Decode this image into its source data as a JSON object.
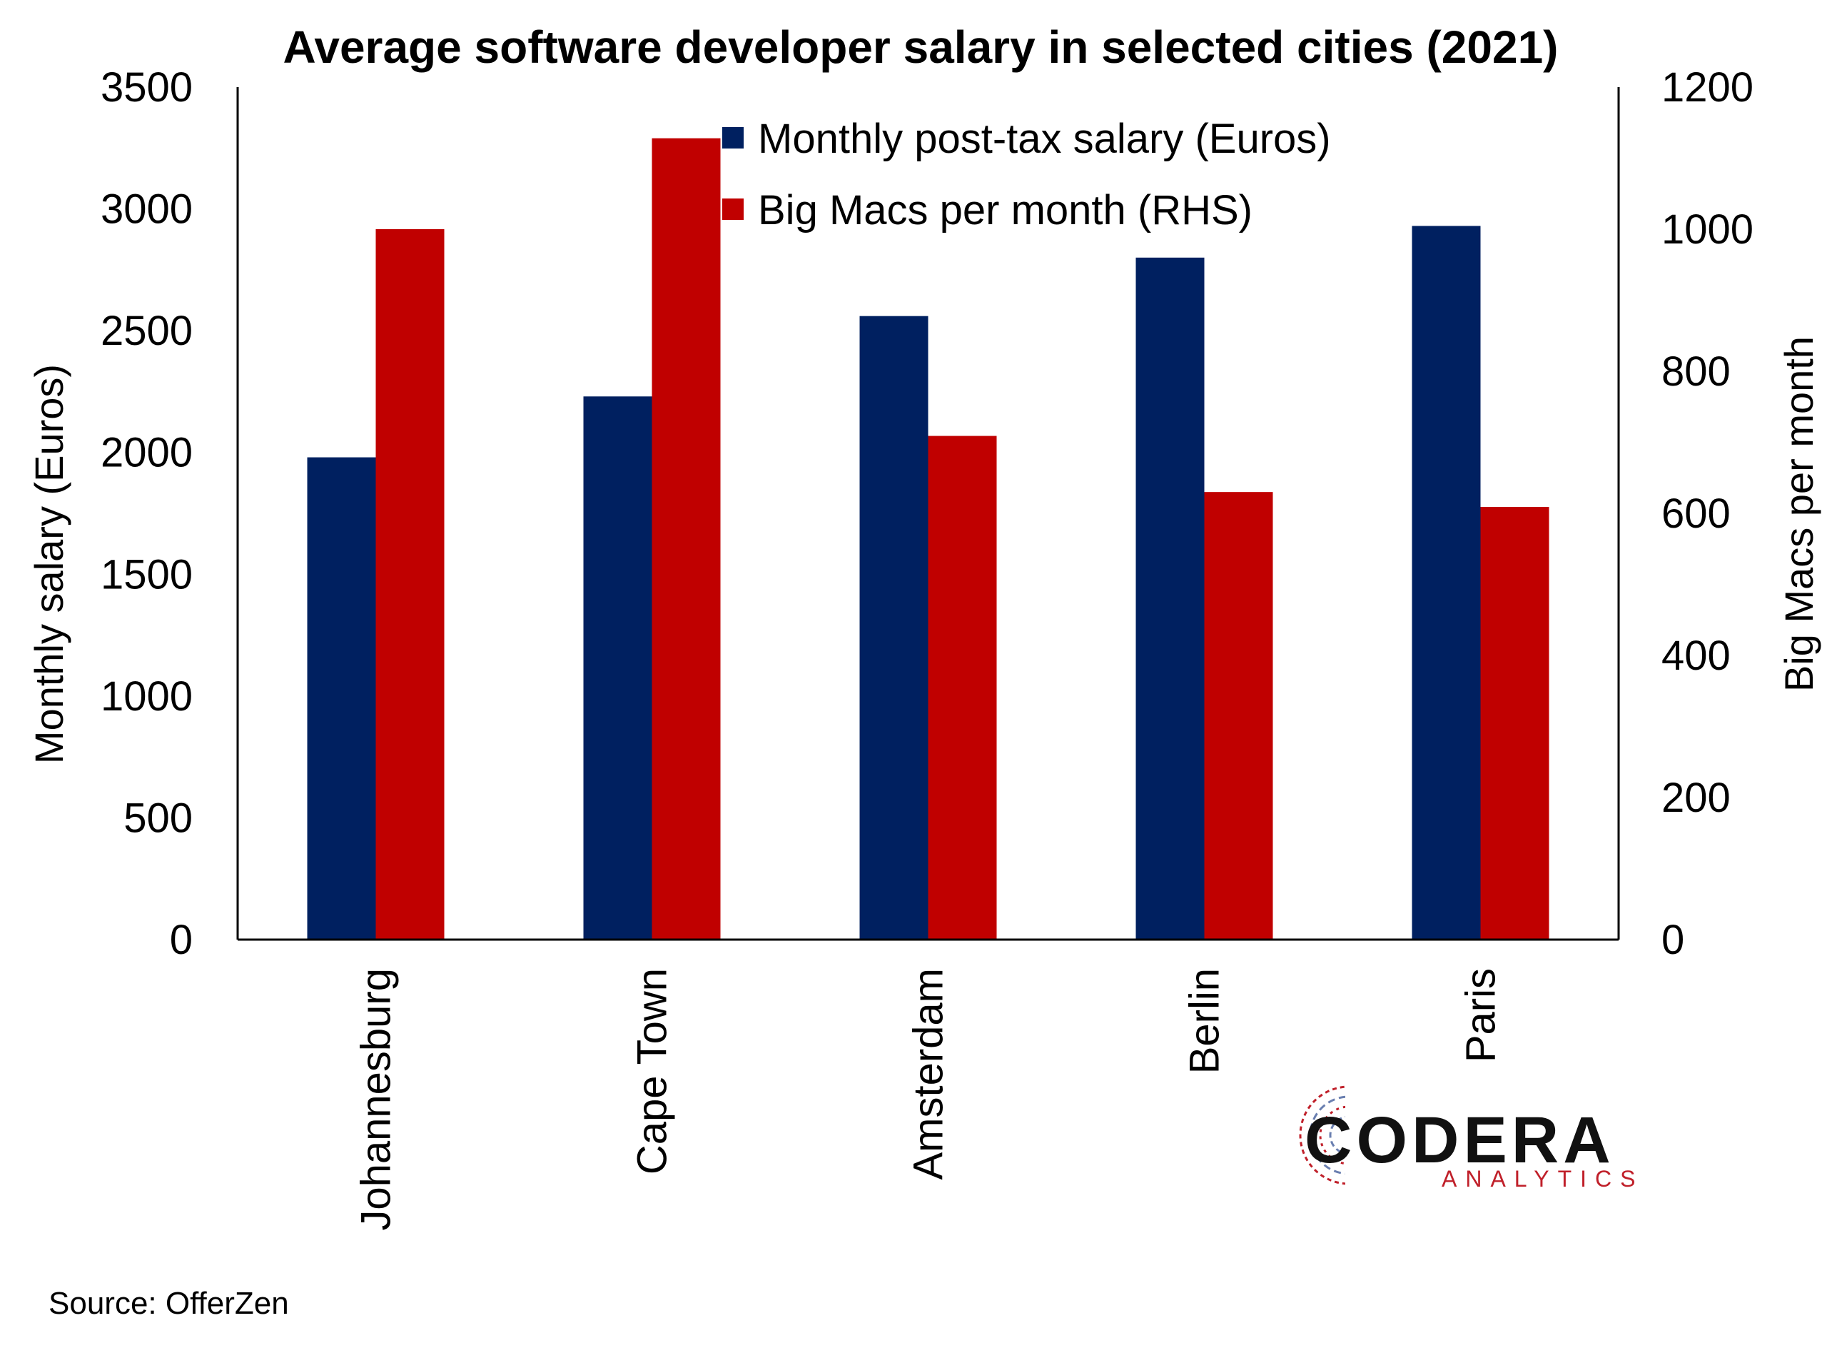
{
  "chart_data": {
    "type": "bar",
    "title": "Average software developer salary in selected cities (2021)",
    "categories": [
      "Johannesburg",
      "Cape Town",
      "Amsterdam",
      "Berlin",
      "Paris"
    ],
    "series": [
      {
        "name": "Monthly post-tax salary (Euros)",
        "axis": "left",
        "color": "#002060",
        "values": [
          1980,
          2230,
          2560,
          2800,
          2930
        ]
      },
      {
        "name": "Big Macs per month (RHS)",
        "axis": "right",
        "color": "#c00000",
        "values": [
          1000,
          1128,
          709,
          630,
          609
        ]
      }
    ],
    "ylabel": "Monthly salary (Euros)",
    "ylabel_right": "Big Macs per month",
    "ylim": [
      0,
      3500
    ],
    "ylim_right": [
      0,
      1200
    ],
    "yticks": [
      "0",
      "500",
      "1000",
      "1500",
      "2000",
      "2500",
      "3000",
      "3500"
    ],
    "yticks_right": [
      "0",
      "200",
      "400",
      "600",
      "800",
      "1000",
      "1200"
    ],
    "legend_position": "top-center",
    "grid": false,
    "source": "Source: OfferZen"
  },
  "logo": {
    "name": "CODERA",
    "sub": "ANALYTICS"
  }
}
